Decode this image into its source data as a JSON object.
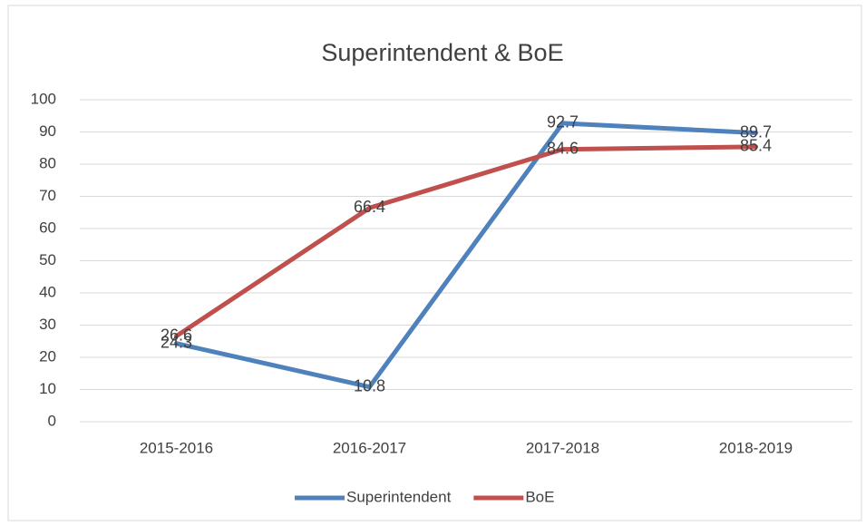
{
  "chart_data": {
    "type": "line",
    "title": "Superintendent & BoE",
    "categories": [
      "2015-2016",
      "2016-2017",
      "2017-2018",
      "2018-2019"
    ],
    "series": [
      {
        "name": "Superintendent",
        "color": "#4f81bd",
        "values": [
          24.3,
          10.8,
          92.7,
          89.7
        ]
      },
      {
        "name": "BoE",
        "color": "#c0504d",
        "values": [
          26.6,
          66.4,
          84.6,
          85.4
        ]
      }
    ],
    "ylim": [
      0,
      100
    ],
    "yticks": [
      0,
      10,
      20,
      30,
      40,
      50,
      60,
      70,
      80,
      90,
      100
    ],
    "grid": true,
    "legend": "bottom"
  }
}
